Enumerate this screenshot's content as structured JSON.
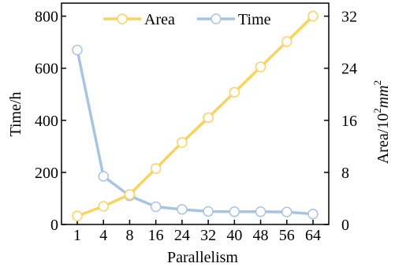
{
  "chart_data": {
    "type": "line",
    "xlabel": "Parallelism",
    "ylabel_left": "Time/h",
    "ylabel_right_main": "Area/10",
    "ylabel_right_exp": "2",
    "ylabel_right_unit": "mm",
    "ylabel_right_unit_exp": "2",
    "categories": [
      "1",
      "4",
      "8",
      "16",
      "24",
      "32",
      "40",
      "48",
      "56",
      "64"
    ],
    "yleft_lim": [
      0,
      850
    ],
    "yleft_ticks": [
      0,
      200,
      400,
      600,
      800
    ],
    "yright_lim": [
      0,
      34
    ],
    "yright_ticks": [
      0,
      8,
      16,
      24,
      32
    ],
    "legend_position": "top-center",
    "series": [
      {
        "name": "Area",
        "axis": "right",
        "color": "#f8d35e",
        "values": [
          1.3,
          2.8,
          4.6,
          8.6,
          12.6,
          16.4,
          20.3,
          24.2,
          28.1,
          32.0
        ]
      },
      {
        "name": "Time",
        "axis": "left",
        "color": "#a9c4e2",
        "values": [
          670,
          185,
          110,
          68,
          58,
          50,
          49,
          49,
          48,
          40
        ]
      }
    ]
  }
}
